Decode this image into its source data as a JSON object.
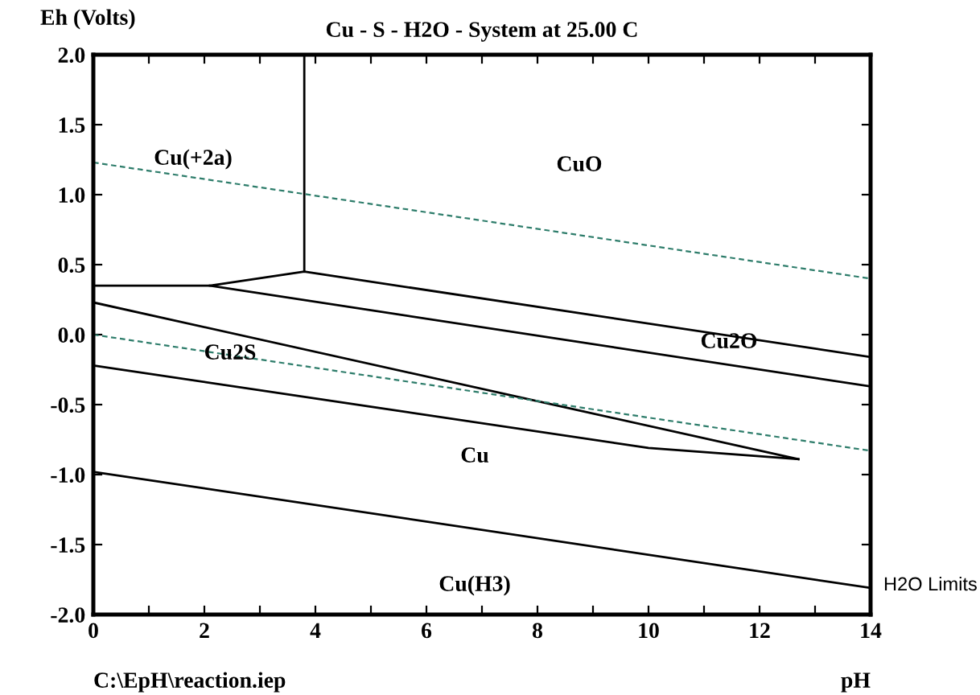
{
  "chart_data": {
    "type": "line",
    "title": "Cu - S - H2O - System at 25.00 C",
    "xlabel": "pH",
    "ylabel": "Eh (Volts)",
    "xlim": [
      0,
      14
    ],
    "ylim": [
      -2.0,
      2.0
    ],
    "xticks": [
      0,
      {
        "value": 1,
        "label": null
      },
      2,
      {
        "value": 3,
        "label": null
      },
      4,
      {
        "value": 5,
        "label": null
      },
      6,
      {
        "value": 7,
        "label": null
      },
      8,
      {
        "value": 9,
        "label": null
      },
      10,
      {
        "value": 11,
        "label": null
      },
      12,
      {
        "value": 13,
        "label": null
      },
      14
    ],
    "yticks": [
      {
        "value": -2.0,
        "label": "-2.0"
      },
      {
        "value": -1.5,
        "label": "-1.5"
      },
      {
        "value": -1.0,
        "label": "-1.0"
      },
      {
        "value": -0.5,
        "label": "-0.5"
      },
      {
        "value": 0.0,
        "label": "0.0"
      },
      {
        "value": 0.5,
        "label": "0.5"
      },
      {
        "value": 1.0,
        "label": "1.0"
      },
      {
        "value": 1.5,
        "label": "1.5"
      },
      {
        "value": 2.0,
        "label": "2.0"
      }
    ],
    "grid": false,
    "legend": false,
    "marker": "none",
    "series": [
      {
        "x": [
          3.8,
          3.8
        ],
        "values": [
          2.0,
          0.45
        ],
        "color": "#000000",
        "line_style": "solid"
      },
      {
        "x": [
          0,
          2.1,
          3.8,
          14
        ],
        "values": [
          0.35,
          0.35,
          0.45,
          -0.16
        ],
        "color": "#000000",
        "line_style": "solid"
      },
      {
        "x": [
          2.1,
          14
        ],
        "values": [
          0.35,
          -0.37
        ],
        "color": "#000000",
        "line_style": "solid"
      },
      {
        "x": [
          0,
          12.7
        ],
        "values": [
          0.23,
          -0.89
        ],
        "color": "#000000",
        "line_style": "solid"
      },
      {
        "x": [
          0,
          10.0,
          12.7
        ],
        "values": [
          -0.22,
          -0.81,
          -0.89
        ],
        "color": "#000000",
        "line_style": "solid"
      },
      {
        "x": [
          0,
          14
        ],
        "values": [
          -0.98,
          -1.81
        ],
        "color": "#000000",
        "line_style": "solid"
      },
      {
        "x": [
          0,
          14
        ],
        "values": [
          1.23,
          0.4
        ],
        "color": "#2e7d6b",
        "line_style": "dashed"
      },
      {
        "x": [
          0,
          14
        ],
        "values": [
          0.0,
          -0.83
        ],
        "color": "#2e7d6b",
        "line_style": "dashed"
      }
    ],
    "annotations": [
      "Cu(+2a)",
      "CuO",
      "Cu2O",
      "Cu2S",
      "Cu",
      "Cu(H3)",
      "H2O Limits",
      "C:\\EpH\\reaction.iep"
    ]
  }
}
